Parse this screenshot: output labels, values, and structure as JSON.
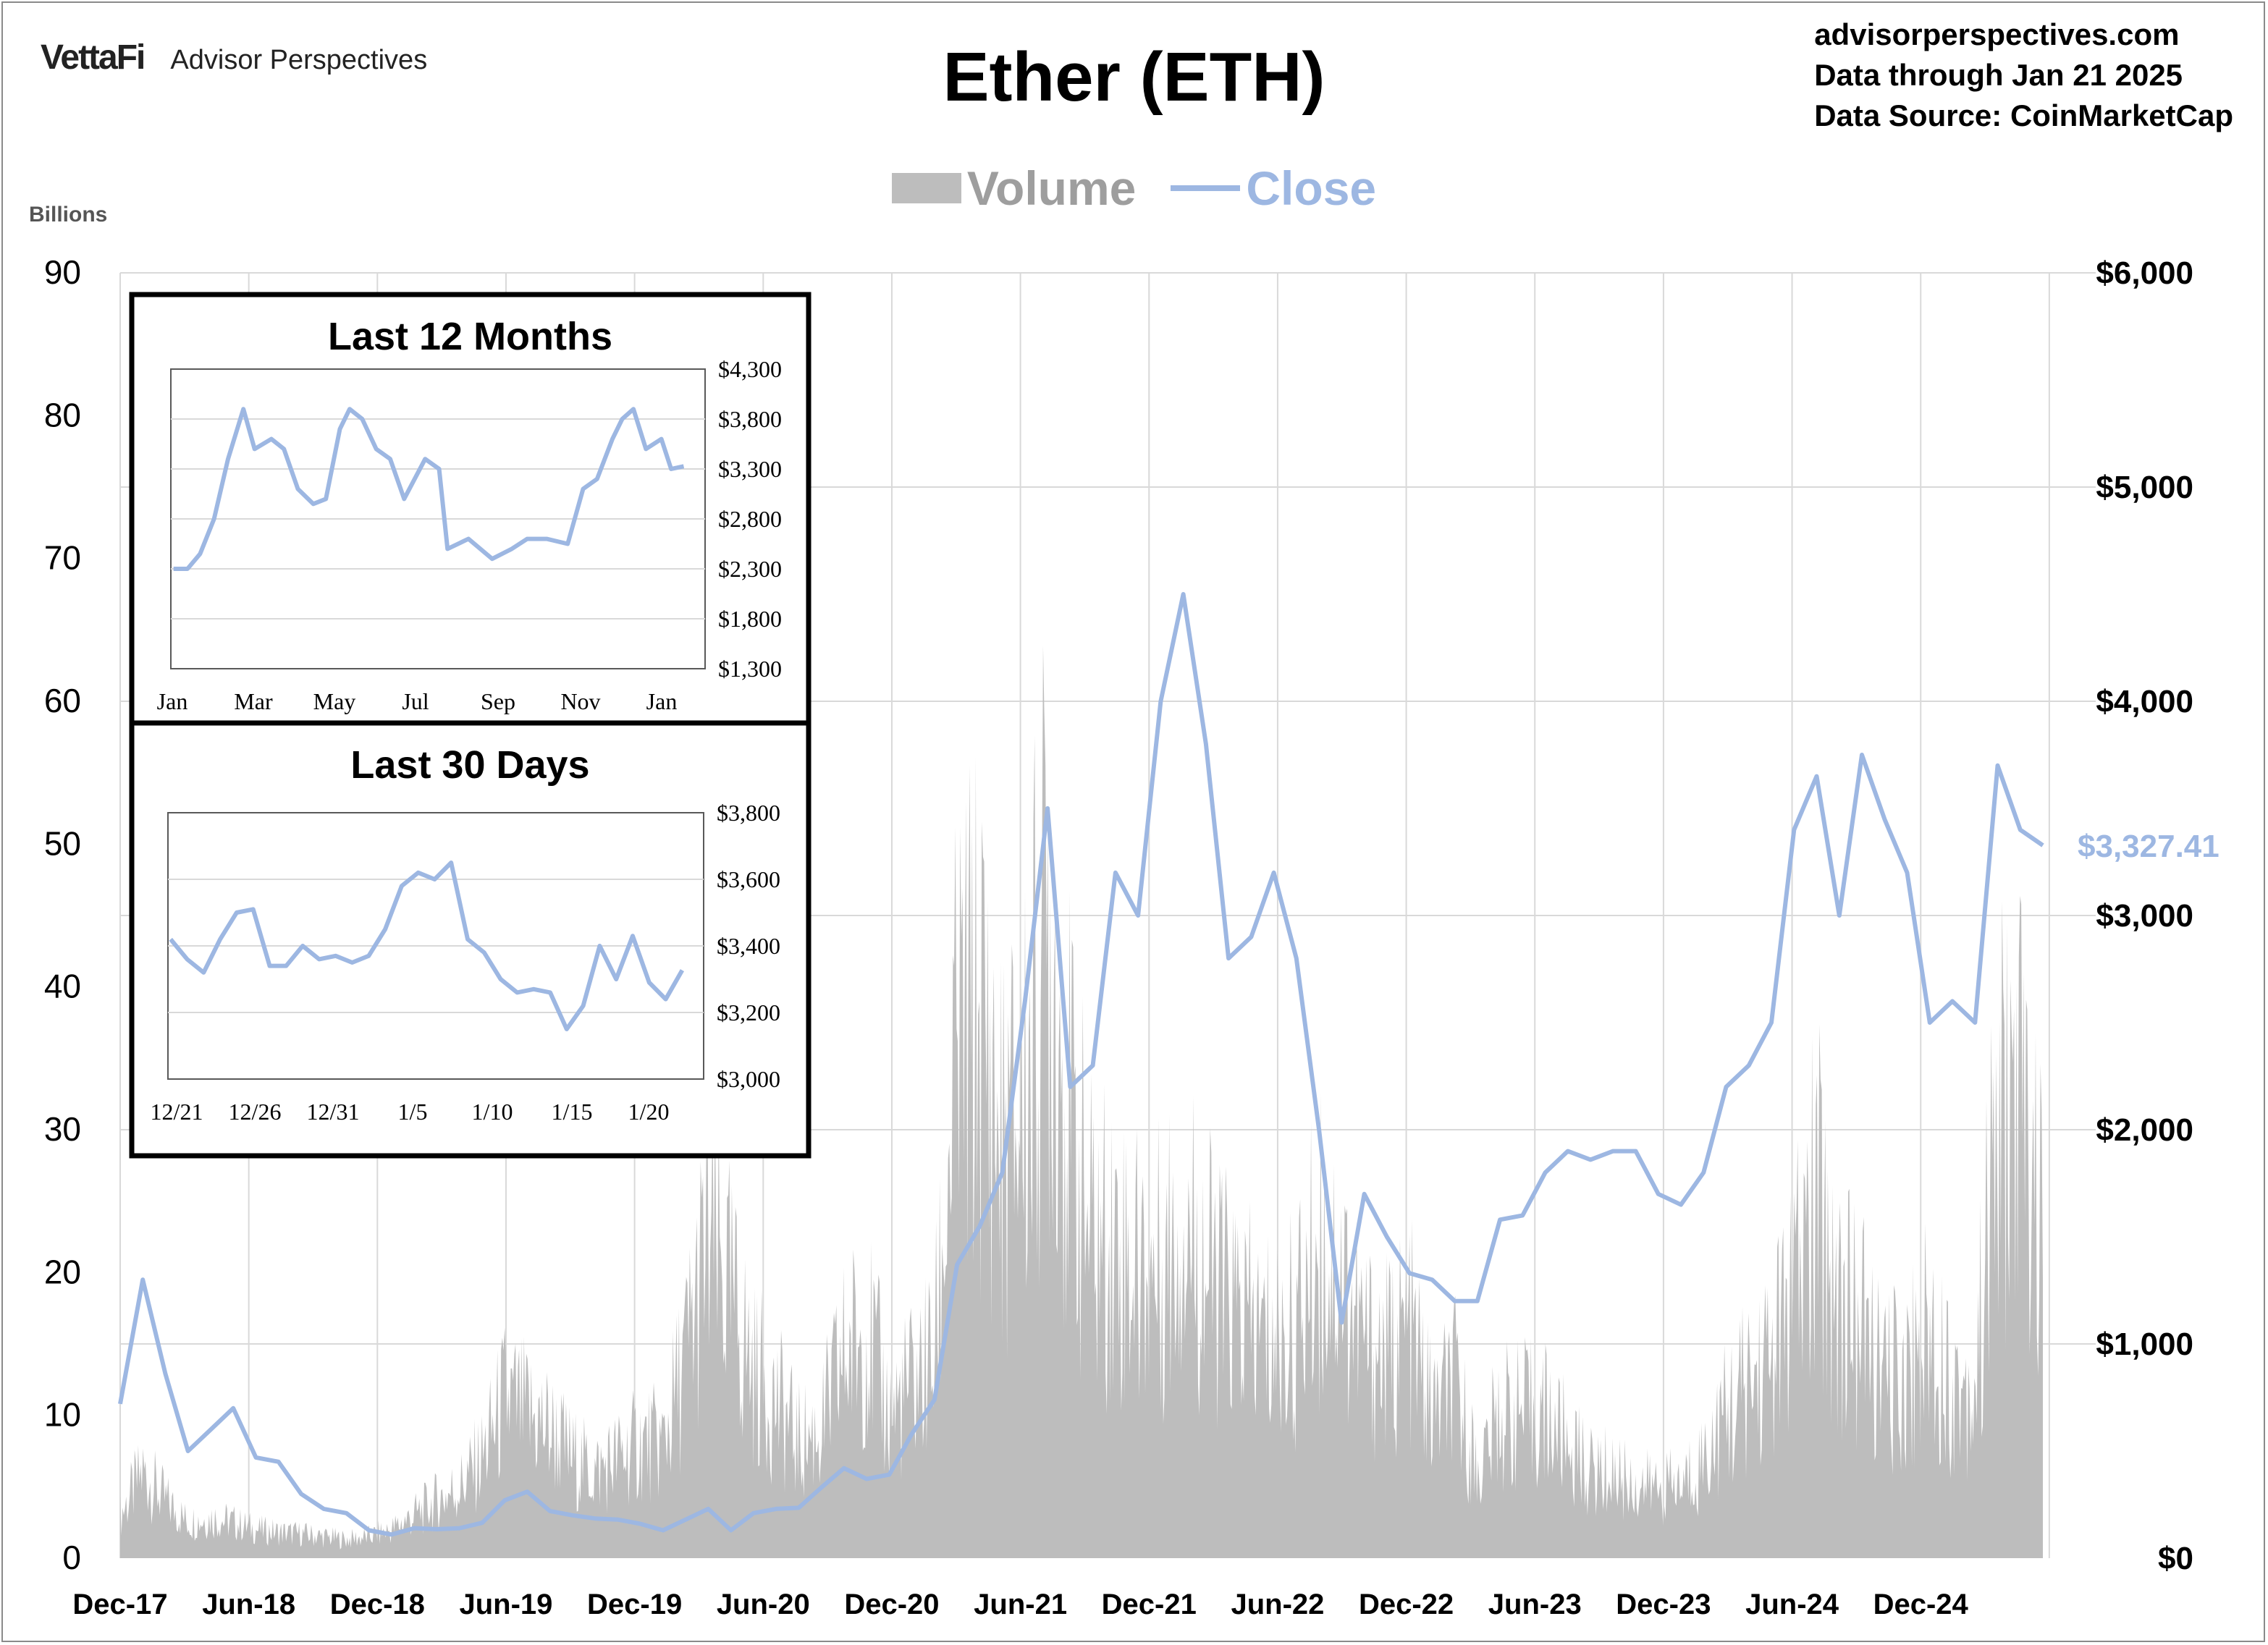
{
  "header": {
    "brand_logo": "VettaFi",
    "brand_name": "Advisor Perspectives",
    "website": "advisorperspectives.com",
    "data_through": "Data through Jan 21 2025",
    "data_source": "Data Source: CoinMarketCap"
  },
  "colors": {
    "volume": "#bdbdbd",
    "close": "#9db7e2",
    "grid": "#d9d9d9",
    "inset_border": "#000000"
  },
  "chart_data": [
    {
      "type": "area",
      "title": "Ether (ETH)",
      "legend": [
        "Volume",
        "Close"
      ],
      "legend_position": "top-center",
      "left_axis_label": "Billions",
      "left_ticks": [
        "0",
        "10",
        "20",
        "30",
        "40",
        "50",
        "60",
        "70",
        "80",
        "90"
      ],
      "left_ylim": [
        0,
        90
      ],
      "right_ticks": [
        "$0",
        "$1,000",
        "$2,000",
        "$3,000",
        "$4,000",
        "$5,000",
        "$6,000"
      ],
      "right_ylim": [
        0,
        6000
      ],
      "x_ticks": [
        "Dec-17",
        "Jun-18",
        "Dec-18",
        "Jun-19",
        "Dec-19",
        "Jun-20",
        "Dec-20",
        "Jun-21",
        "Dec-21",
        "Jun-22",
        "Dec-22",
        "Jun-23",
        "Dec-23",
        "Jun-24",
        "Dec-24"
      ],
      "last_close_label": "$3,327.41",
      "grid": "vertical",
      "series": [
        {
          "name": "Close",
          "axis": "right",
          "x": [
            "2017-12",
            "2018-01",
            "2018-02",
            "2018-03",
            "2018-04",
            "2018-05",
            "2018-06",
            "2018-07",
            "2018-08",
            "2018-09",
            "2018-10",
            "2018-11",
            "2018-12",
            "2019-01",
            "2019-02",
            "2019-03",
            "2019-04",
            "2019-05",
            "2019-06",
            "2019-07",
            "2019-08",
            "2019-09",
            "2019-10",
            "2019-11",
            "2019-12",
            "2020-01",
            "2020-02",
            "2020-03",
            "2020-04",
            "2020-05",
            "2020-06",
            "2020-07",
            "2020-08",
            "2020-09",
            "2020-10",
            "2020-11",
            "2020-12",
            "2021-01",
            "2021-02",
            "2021-03",
            "2021-04",
            "2021-05",
            "2021-06",
            "2021-07",
            "2021-08",
            "2021-09",
            "2021-10",
            "2021-11",
            "2021-12",
            "2022-01",
            "2022-02",
            "2022-03",
            "2022-04",
            "2022-05",
            "2022-06",
            "2022-07",
            "2022-08",
            "2022-09",
            "2022-10",
            "2022-11",
            "2022-12",
            "2023-01",
            "2023-02",
            "2023-03",
            "2023-04",
            "2023-05",
            "2023-06",
            "2023-07",
            "2023-08",
            "2023-09",
            "2023-10",
            "2023-11",
            "2023-12",
            "2024-01",
            "2024-02",
            "2024-03",
            "2024-04",
            "2024-05",
            "2024-06",
            "2024-07",
            "2024-08",
            "2024-09",
            "2024-10",
            "2024-11",
            "2024-12",
            "2025-01"
          ],
          "values": [
            720,
            1300,
            860,
            500,
            600,
            700,
            470,
            450,
            300,
            230,
            210,
            130,
            110,
            140,
            135,
            140,
            165,
            270,
            310,
            220,
            200,
            185,
            180,
            160,
            130,
            180,
            230,
            130,
            210,
            230,
            235,
            330,
            420,
            370,
            390,
            580,
            740,
            1370,
            1550,
            1800,
            2600,
            3500,
            2200,
            2300,
            3200,
            3000,
            4000,
            4500,
            3800,
            2800,
            2900,
            3200,
            2800,
            2000,
            1100,
            1700,
            1500,
            1330,
            1300,
            1200,
            1200,
            1580,
            1600,
            1800,
            1900,
            1860,
            1900,
            1900,
            1700,
            1650,
            1800,
            2200,
            2300,
            2500,
            3400,
            3650,
            3000,
            3750,
            3450,
            3200,
            2500,
            2600,
            2500,
            3700,
            3400,
            3327.41
          ]
        },
        {
          "name": "Volume",
          "axis": "left",
          "x": [
            "2017-12",
            "2018-01",
            "2018-02",
            "2018-03",
            "2018-04",
            "2018-05",
            "2018-06",
            "2018-07",
            "2018-08",
            "2018-09",
            "2018-10",
            "2018-11",
            "2018-12",
            "2019-01",
            "2019-02",
            "2019-03",
            "2019-04",
            "2019-05",
            "2019-06",
            "2019-07",
            "2019-08",
            "2019-09",
            "2019-10",
            "2019-11",
            "2019-12",
            "2020-01",
            "2020-02",
            "2020-03",
            "2020-04",
            "2020-05",
            "2020-06",
            "2020-07",
            "2020-08",
            "2020-09",
            "2020-10",
            "2020-11",
            "2020-12",
            "2021-01",
            "2021-02",
            "2021-03",
            "2021-04",
            "2021-05",
            "2021-06",
            "2021-07",
            "2021-08",
            "2021-09",
            "2021-10",
            "2021-11",
            "2021-12",
            "2022-01",
            "2022-02",
            "2022-03",
            "2022-04",
            "2022-05",
            "2022-06",
            "2022-07",
            "2022-08",
            "2022-09",
            "2022-10",
            "2022-11",
            "2022-12",
            "2023-01",
            "2023-02",
            "2023-03",
            "2023-04",
            "2023-05",
            "2023-06",
            "2023-07",
            "2023-08",
            "2023-09",
            "2023-10",
            "2023-11",
            "2023-12",
            "2024-01",
            "2024-02",
            "2024-03",
            "2024-04",
            "2024-05",
            "2024-06",
            "2024-07",
            "2024-08",
            "2024-09",
            "2024-10",
            "2024-11",
            "2024-12",
            "2025-01"
          ],
          "values": [
            3,
            6,
            4,
            2.5,
            2.8,
            2.5,
            2,
            1.8,
            1.7,
            1.5,
            1.3,
            1.5,
            2,
            3,
            4,
            5,
            7,
            11,
            10,
            9,
            7,
            6,
            7,
            8,
            8,
            14,
            22,
            18,
            13,
            11,
            8,
            9,
            14,
            16,
            10,
            12,
            14,
            35,
            38,
            28,
            32,
            45,
            30,
            22,
            22,
            20,
            20,
            24,
            20,
            18,
            16,
            15,
            16,
            22,
            20,
            15,
            14,
            16,
            10,
            12,
            6,
            10,
            10,
            10,
            8,
            6,
            6,
            5,
            5,
            5,
            7,
            10,
            12,
            14,
            18,
            25,
            18,
            16,
            12,
            13,
            16,
            12,
            12,
            30,
            32,
            22
          ]
        }
      ]
    },
    {
      "type": "line",
      "title": "Last 12 Months",
      "y_ticks": [
        "$4,300",
        "$3,800",
        "$3,300",
        "$2,800",
        "$2,300",
        "$1,800",
        "$1,300"
      ],
      "ylim": [
        1300,
        4300
      ],
      "x_ticks": [
        "Jan",
        "Mar",
        "May",
        "Jul",
        "Sep",
        "Nov",
        "Jan"
      ],
      "series": [
        {
          "name": "Close",
          "x": [
            "2024-01-22",
            "2024-02-01",
            "2024-02-10",
            "2024-02-20",
            "2024-03-01",
            "2024-03-12",
            "2024-03-20",
            "2024-04-01",
            "2024-04-10",
            "2024-04-20",
            "2024-05-01",
            "2024-05-10",
            "2024-05-20",
            "2024-05-27",
            "2024-06-05",
            "2024-06-15",
            "2024-06-25",
            "2024-07-05",
            "2024-07-20",
            "2024-07-30",
            "2024-08-05",
            "2024-08-20",
            "2024-09-06",
            "2024-09-20",
            "2024-10-01",
            "2024-10-15",
            "2024-10-30",
            "2024-11-10",
            "2024-11-20",
            "2024-12-01",
            "2024-12-08",
            "2024-12-16",
            "2024-12-25",
            "2025-01-05",
            "2025-01-12",
            "2025-01-21"
          ],
          "values": [
            2300,
            2300,
            2450,
            2800,
            3400,
            3900,
            3500,
            3600,
            3500,
            3100,
            2950,
            3000,
            3700,
            3900,
            3800,
            3500,
            3400,
            3000,
            3400,
            3300,
            2500,
            2600,
            2400,
            2500,
            2600,
            2600,
            2550,
            3100,
            3200,
            3600,
            3800,
            3900,
            3500,
            3600,
            3300,
            3327
          ]
        }
      ]
    },
    {
      "type": "line",
      "title": "Last 30 Days",
      "y_ticks": [
        "$3,800",
        "$3,600",
        "$3,400",
        "$3,200",
        "$3,000"
      ],
      "ylim": [
        3000,
        3800
      ],
      "x_ticks": [
        "12/21",
        "12/26",
        "12/31",
        "1/5",
        "1/10",
        "1/15",
        "1/20"
      ],
      "series": [
        {
          "name": "Close",
          "x": [
            "12/21",
            "12/22",
            "12/23",
            "12/24",
            "12/25",
            "12/26",
            "12/27",
            "12/28",
            "12/29",
            "12/30",
            "12/31",
            "1/1",
            "1/2",
            "1/3",
            "1/4",
            "1/5",
            "1/6",
            "1/7",
            "1/8",
            "1/9",
            "1/10",
            "1/11",
            "1/12",
            "1/13",
            "1/14",
            "1/15",
            "1/16",
            "1/17",
            "1/18",
            "1/19",
            "1/20",
            "1/21"
          ],
          "values": [
            3420,
            3360,
            3320,
            3420,
            3500,
            3510,
            3340,
            3340,
            3400,
            3360,
            3370,
            3350,
            3370,
            3450,
            3580,
            3620,
            3600,
            3650,
            3420,
            3380,
            3300,
            3260,
            3270,
            3260,
            3150,
            3220,
            3400,
            3300,
            3430,
            3290,
            3240,
            3327
          ]
        }
      ]
    }
  ]
}
